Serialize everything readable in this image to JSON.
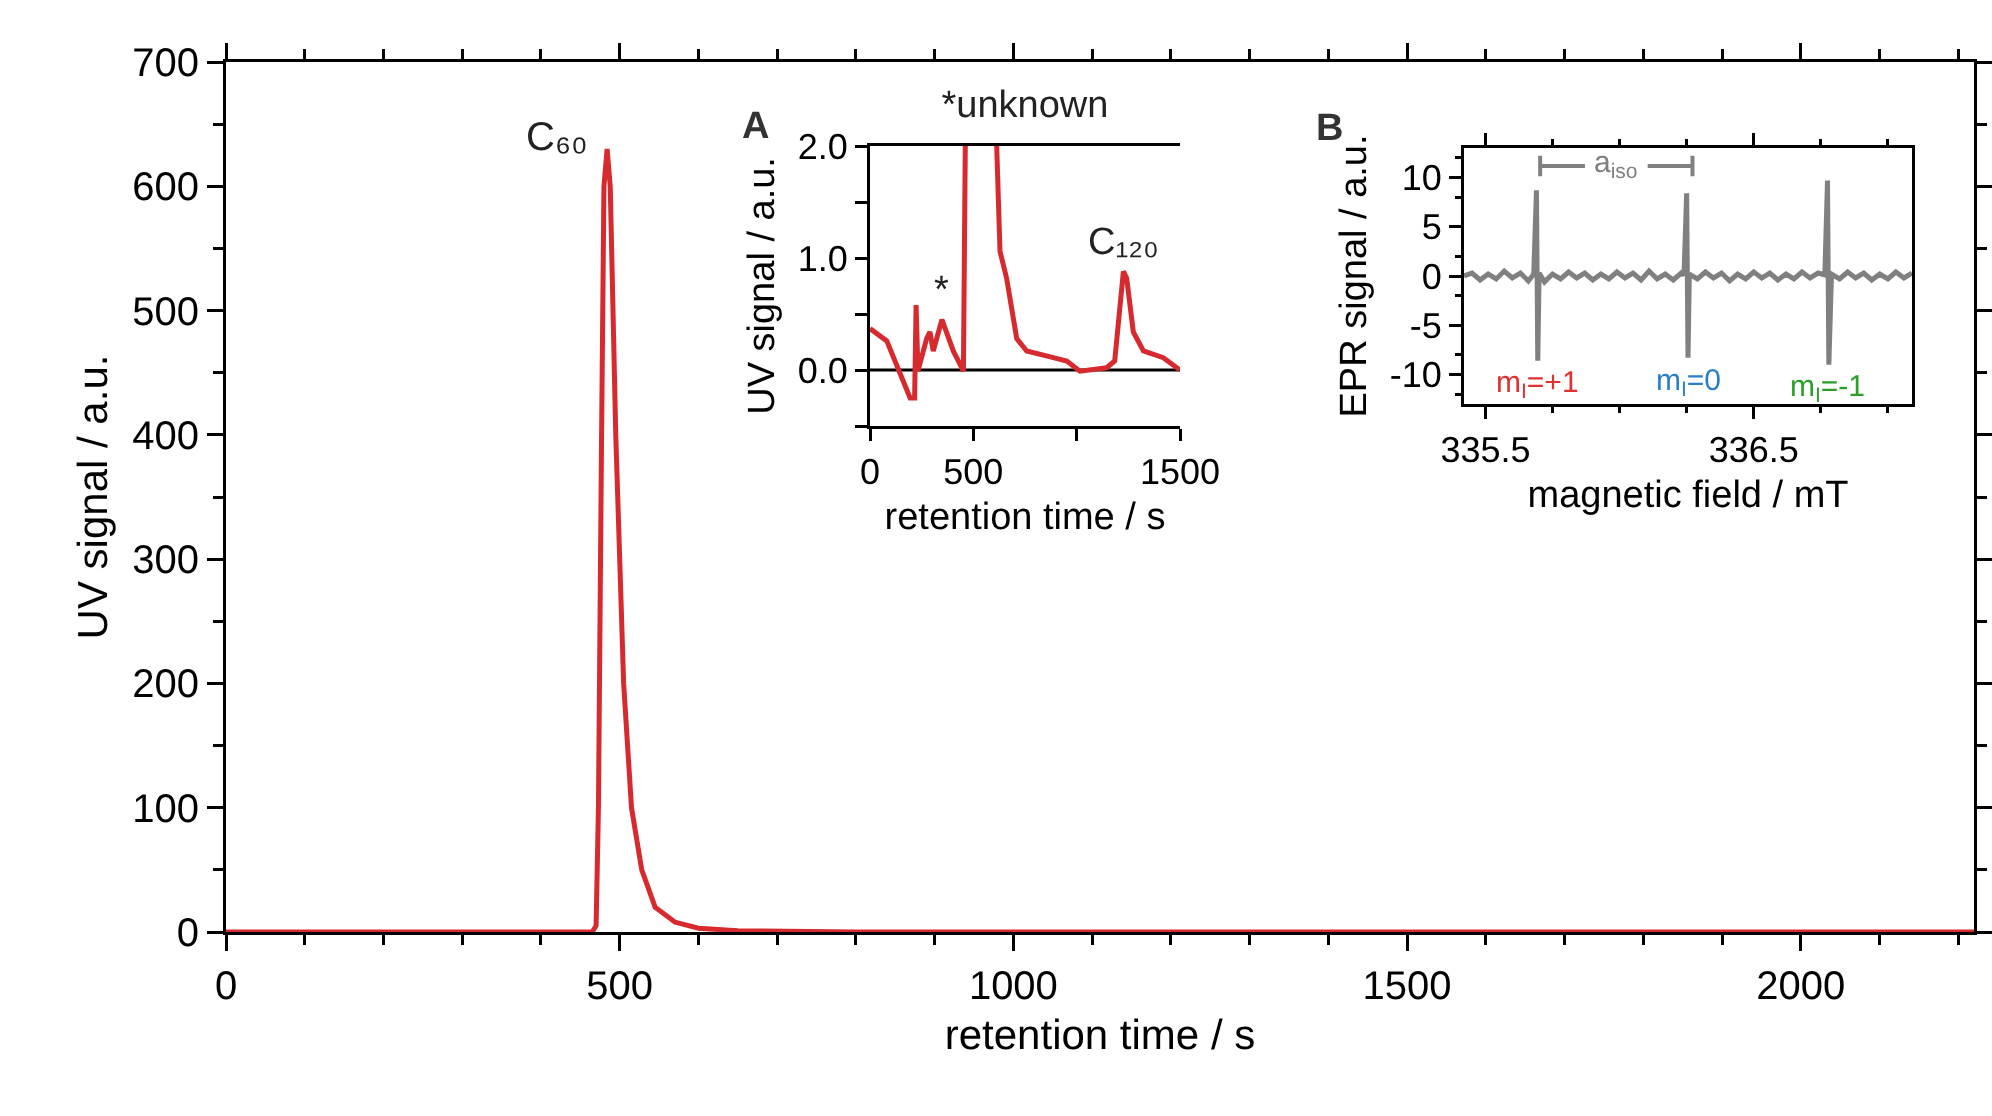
{
  "chart_data": [
    {
      "type": "line",
      "xlabel": "retention time / s",
      "ylabel": "UV signal / a.u.",
      "xlim": [
        0,
        2220
      ],
      "ylim": [
        0,
        700
      ],
      "xticks": [
        0,
        {
          "value": 100,
          "label": null
        },
        {
          "value": 200,
          "label": null
        },
        {
          "value": 300,
          "label": null
        },
        {
          "value": 400,
          "label": null
        },
        500,
        {
          "value": 600,
          "label": null
        },
        {
          "value": 700,
          "label": null
        },
        {
          "value": 800,
          "label": null
        },
        {
          "value": 900,
          "label": null
        },
        1000,
        {
          "value": 1100,
          "label": null
        },
        {
          "value": 1200,
          "label": null
        },
        {
          "value": 1300,
          "label": null
        },
        {
          "value": 1400,
          "label": null
        },
        1500,
        {
          "value": 1600,
          "label": null
        },
        {
          "value": 1700,
          "label": null
        },
        {
          "value": 1800,
          "label": null
        },
        {
          "value": 1900,
          "label": null
        },
        2000,
        {
          "value": 2100,
          "label": null
        },
        {
          "value": 2200,
          "label": null
        }
      ],
      "yticks": [
        0,
        {
          "value": 50,
          "label": null
        },
        100,
        {
          "value": 150,
          "label": null
        },
        200,
        {
          "value": 250,
          "label": null
        },
        300,
        {
          "value": 350,
          "label": null
        },
        400,
        {
          "value": 450,
          "label": null
        },
        500,
        {
          "value": 550,
          "label": null
        },
        600,
        {
          "value": 650,
          "label": null
        },
        700
      ],
      "grid": false,
      "marker": "none",
      "line_style": "solid",
      "annotations": [
        {
          "text": "C₆₀",
          "x": 484,
          "y": 630
        }
      ],
      "series": [
        {
          "color": "#d62a2f",
          "x": [
            0,
            200,
            400,
            465,
            470,
            473,
            477,
            480,
            484,
            488,
            495,
            505,
            515,
            528,
            545,
            570,
            600,
            650,
            800,
            1200,
            1600,
            2220
          ],
          "values": [
            0,
            0,
            0,
            0,
            5,
            100,
            400,
            600,
            630,
            600,
            400,
            200,
            100,
            50,
            20,
            8,
            3,
            1,
            0,
            0,
            0,
            0
          ]
        }
      ]
    },
    {
      "type": "line",
      "title": "*unknown",
      "xlabel": "retention time / s",
      "ylabel": "UV signal / a.u.",
      "xlim": [
        0,
        1500
      ],
      "ylim": [
        -0.5,
        2.0
      ],
      "xticks": [
        0,
        500,
        {
          "value": 1000,
          "label": null
        },
        1500
      ],
      "yticks": [
        {
          "value": -0.5,
          "label": null
        },
        {
          "value": 0,
          "label": "0.0"
        },
        {
          "value": 0.5,
          "label": null
        },
        {
          "value": 1,
          "label": "1.0"
        },
        {
          "value": 1.5,
          "label": null
        },
        {
          "value": 2,
          "label": "2.0"
        }
      ],
      "grid": false,
      "marker": "none",
      "line_style": "solid",
      "ref_lines": [
        {
          "axis": "y",
          "value": 0,
          "label": null,
          "color": "#000000"
        }
      ],
      "annotations": [
        "A",
        {
          "text": "*",
          "x": 348,
          "y": 0.45
        },
        {
          "text": "C₁₂₀",
          "x": 1226,
          "y": 0.88
        }
      ],
      "series": [
        {
          "color": "#d62a2f",
          "x": [
            0,
            81,
            194,
            216,
            223,
            232,
            274,
            290,
            306,
            348,
            403,
            452,
            461,
            537,
            613,
            629,
            661,
            710,
            758,
            887,
            952,
            1016,
            1145,
            1184,
            1226,
            1242,
            1274,
            1323,
            1419,
            1500
          ],
          "values": [
            0.37,
            0.26,
            -0.25,
            -0.25,
            0.58,
            -0.01,
            0.28,
            0.34,
            0.17,
            0.45,
            0.17,
            -0.01,
            2.0,
            null,
            2.0,
            1.06,
            0.82,
            0.28,
            0.17,
            0.11,
            0.08,
            -0.01,
            0.02,
            0.08,
            0.88,
            0.82,
            0.34,
            0.17,
            0.11,
            0.0
          ]
        }
      ]
    },
    {
      "type": "line",
      "xlabel": "magnetic field / mT",
      "ylabel": "EPR signal / a.u.",
      "xlim": [
        335.42,
        337.09
      ],
      "ylim": [
        -13,
        13
      ],
      "xticks": [
        335.5,
        {
          "value": 335.75,
          "label": null
        },
        {
          "value": 336,
          "label": null
        },
        {
          "value": 336.25,
          "label": null
        },
        336.5,
        {
          "value": 336.75,
          "label": null
        },
        {
          "value": 337,
          "label": null
        }
      ],
      "yticks": [
        {
          "value": -12,
          "label": null
        },
        -10,
        {
          "value": -8,
          "label": null
        },
        -5,
        {
          "value": -2,
          "label": null
        },
        0,
        {
          "value": 2,
          "label": null
        },
        5,
        {
          "value": 8,
          "label": null
        },
        10,
        {
          "value": 12,
          "label": null
        }
      ],
      "grid": false,
      "marker": "none",
      "line_style": "solid",
      "annotations": [
        "B",
        "a$_{iso}$",
        {
          "text": "m$_{I}$=+1",
          "x": 335.695,
          "y": -8.6
        },
        {
          "text": "m$_{I}$=0",
          "x": 336.255,
          "y": -8.3
        },
        {
          "text": "m$_{I}$=-1",
          "x": 336.78,
          "y": -9.0
        }
      ],
      "series": [
        {
          "color": "#808080",
          "x": [
            335.42,
            335.45,
            335.48,
            335.51,
            335.54,
            335.57,
            335.6,
            335.63,
            335.66,
            335.68,
            335.69,
            335.695,
            335.7,
            335.72,
            335.75,
            335.78,
            335.81,
            335.84,
            335.87,
            335.9,
            335.93,
            335.96,
            335.99,
            336.02,
            336.05,
            336.08,
            336.11,
            336.14,
            336.17,
            336.2,
            336.23,
            336.24,
            336.25,
            336.255,
            336.26,
            336.29,
            336.32,
            336.35,
            336.38,
            336.41,
            336.44,
            336.47,
            336.5,
            336.53,
            336.56,
            336.59,
            336.62,
            336.65,
            336.68,
            336.71,
            336.74,
            336.765,
            336.775,
            336.78,
            336.79,
            336.82,
            336.85,
            336.88,
            336.91,
            336.94,
            336.97,
            337.0,
            337.03,
            337.06,
            337.09
          ],
          "values": [
            0,
            0.3,
            -0.4,
            0.2,
            -0.3,
            0.5,
            -0.2,
            0.3,
            -0.5,
            0.2,
            8.7,
            -8.6,
            0.3,
            -0.6,
            0.2,
            -0.3,
            0.4,
            -0.2,
            0.3,
            -0.4,
            0.2,
            -0.3,
            0.4,
            -0.2,
            0.3,
            -0.4,
            0.5,
            -0.3,
            0.2,
            -0.4,
            0.3,
            0.1,
            8.4,
            -8.3,
            0.2,
            -0.3,
            0.4,
            -0.2,
            0.3,
            -0.5,
            0.2,
            -0.3,
            0.4,
            -0.2,
            0.3,
            -0.4,
            0.2,
            -0.3,
            0.4,
            -0.2,
            0.3,
            0.1,
            9.7,
            -9.0,
            0.2,
            -0.3,
            0.4,
            -0.2,
            0.3,
            -0.4,
            0.2,
            -0.3,
            0.4,
            -0.2,
            0.3
          ]
        }
      ]
    }
  ]
}
